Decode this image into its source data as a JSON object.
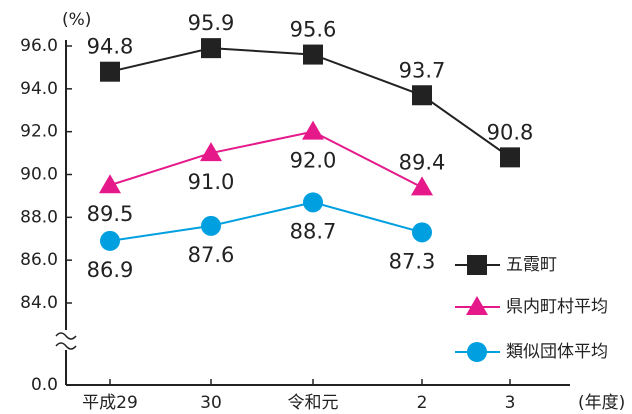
{
  "chart_data": {
    "type": "line",
    "y_label": "(%)",
    "x_label": "(年度)",
    "categories": [
      "平成29",
      "30",
      "令和元",
      "2",
      "3"
    ],
    "ylim": [
      0,
      96
    ],
    "y_break": [
      0,
      84
    ],
    "yticks": [
      {
        "value": 0,
        "label": "0.0"
      },
      {
        "value": 84,
        "label": "84.0"
      },
      {
        "value": 86,
        "label": "86.0"
      },
      {
        "value": 88,
        "label": "88.0"
      },
      {
        "value": 90,
        "label": "90.0"
      },
      {
        "value": 92,
        "label": "92.0"
      },
      {
        "value": 94,
        "label": "94.0"
      },
      {
        "value": 96,
        "label": "96.0"
      }
    ],
    "series": [
      {
        "name": "五霞町",
        "color": "#222222",
        "marker": "square",
        "values": [
          94.8,
          95.9,
          95.6,
          93.7,
          90.8
        ],
        "value_labels": [
          "94.8",
          "95.9",
          "95.6",
          "93.7",
          "90.8"
        ]
      },
      {
        "name": "県内町村平均",
        "color": "#e5198a",
        "marker": "triangle",
        "values": [
          89.5,
          91.0,
          92.0,
          89.4,
          null
        ],
        "value_labels": [
          "89.5",
          "91.0",
          "92.0",
          "89.4",
          null
        ]
      },
      {
        "name": "類似団体平均",
        "color": "#00a0e0",
        "marker": "circle",
        "values": [
          86.9,
          87.6,
          88.7,
          87.3,
          null
        ],
        "value_labels": [
          "86.9",
          "87.6",
          "88.7",
          "87.3",
          null
        ]
      }
    ]
  }
}
